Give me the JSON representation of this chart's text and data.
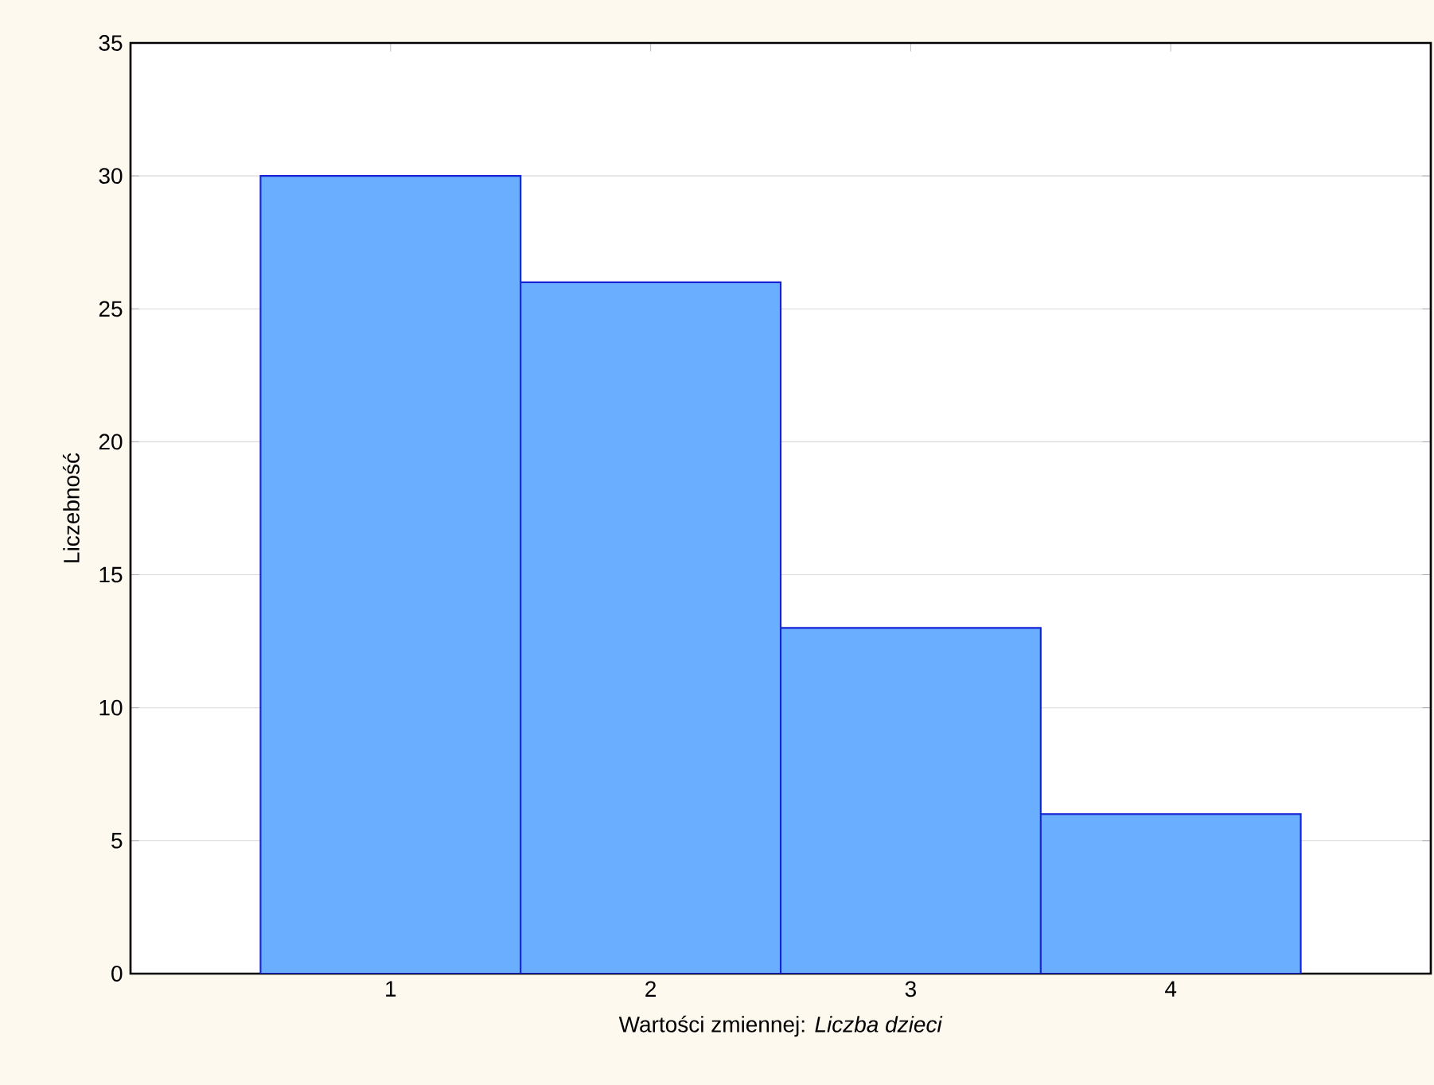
{
  "chart_data": {
    "type": "bar",
    "xlabel": "Wartości zmiennej: *Liczba dzieci*",
    "ylabel": "Liczebność",
    "categories": [
      "1",
      "2",
      "3",
      "4"
    ],
    "series": [
      {
        "color": "#6aafff",
        "values": [
          30,
          26,
          13,
          6
        ]
      }
    ],
    "ylim": [
      0,
      35
    ],
    "yticks": [
      0,
      5,
      10,
      15,
      20,
      25,
      30,
      35
    ],
    "grid": "y"
  }
}
